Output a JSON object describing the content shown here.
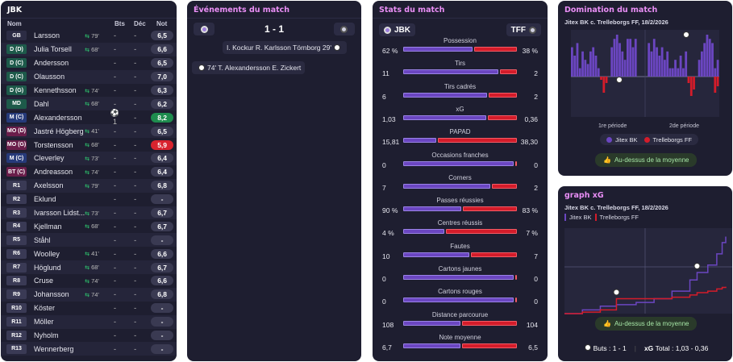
{
  "roster": {
    "title": "JBK",
    "headers": {
      "name": "Nom",
      "goals": "Bts",
      "dec": "Déc",
      "rating": "Not"
    },
    "players": [
      {
        "pos": "GB",
        "cls": "gk",
        "name": "Larsson",
        "sub": "79'",
        "sub_dir": "out",
        "bts": "-",
        "dec": "-",
        "rating": "6,5",
        "rc": ""
      },
      {
        "pos": "D (D)",
        "cls": "d",
        "name": "Julia Torsell",
        "sub": "68'",
        "sub_dir": "out",
        "bts": "-",
        "dec": "-",
        "rating": "6,6",
        "rc": ""
      },
      {
        "pos": "D (C)",
        "cls": "d",
        "name": "Andersson",
        "sub": "",
        "sub_dir": "",
        "bts": "-",
        "dec": "-",
        "rating": "6,5",
        "rc": ""
      },
      {
        "pos": "D (C)",
        "cls": "d",
        "name": "Olausson",
        "sub": "",
        "sub_dir": "",
        "bts": "-",
        "dec": "-",
        "rating": "7,0",
        "rc": ""
      },
      {
        "pos": "D (G)",
        "cls": "d",
        "name": "Kennethsson",
        "sub": "74'",
        "sub_dir": "out",
        "bts": "-",
        "dec": "-",
        "rating": "6,3",
        "rc": ""
      },
      {
        "pos": "MD",
        "cls": "md",
        "name": "Dahl",
        "sub": "68'",
        "sub_dir": "out",
        "bts": "-",
        "dec": "-",
        "rating": "6,2",
        "rc": ""
      },
      {
        "pos": "M (C)",
        "cls": "m",
        "name": "Alexandersson",
        "sub": "",
        "sub_dir": "",
        "bts": "⚽1",
        "dec": "-",
        "rating": "8,2",
        "rc": "best"
      },
      {
        "pos": "MO (D)",
        "cls": "mo",
        "name": "Jastré Högberg",
        "sub": "41'",
        "sub_dir": "out",
        "bts": "-",
        "dec": "-",
        "rating": "6,5",
        "rc": ""
      },
      {
        "pos": "MO (G)",
        "cls": "mo",
        "name": "Torstensson",
        "sub": "68'",
        "sub_dir": "out",
        "bts": "-",
        "dec": "-",
        "rating": "5,9",
        "rc": "worst"
      },
      {
        "pos": "M (C)",
        "cls": "m",
        "name": "Cleverley",
        "sub": "73'",
        "sub_dir": "out",
        "bts": "-",
        "dec": "-",
        "rating": "6,4",
        "rc": ""
      },
      {
        "pos": "BT (C)",
        "cls": "bt",
        "name": "Andreasson",
        "sub": "74'",
        "sub_dir": "out",
        "bts": "-",
        "dec": "-",
        "rating": "6,4",
        "rc": ""
      },
      {
        "pos": "R1",
        "cls": "sub",
        "name": "Axelsson",
        "sub": "79'",
        "sub_dir": "in",
        "bts": "-",
        "dec": "-",
        "rating": "6,8",
        "rc": ""
      },
      {
        "pos": "R2",
        "cls": "sub",
        "name": "Eklund",
        "sub": "",
        "sub_dir": "",
        "bts": "-",
        "dec": "-",
        "rating": "-",
        "rc": ""
      },
      {
        "pos": "R3",
        "cls": "sub",
        "name": "Ivarsson Lidst...",
        "sub": "73'",
        "sub_dir": "in",
        "bts": "-",
        "dec": "-",
        "rating": "6,7",
        "rc": ""
      },
      {
        "pos": "R4",
        "cls": "sub",
        "name": "Kjellman",
        "sub": "68'",
        "sub_dir": "in",
        "bts": "-",
        "dec": "-",
        "rating": "6,7",
        "rc": ""
      },
      {
        "pos": "R5",
        "cls": "sub",
        "name": "Ståhl",
        "sub": "",
        "sub_dir": "",
        "bts": "-",
        "dec": "-",
        "rating": "-",
        "rc": ""
      },
      {
        "pos": "R6",
        "cls": "sub",
        "name": "Woolley",
        "sub": "41'",
        "sub_dir": "in",
        "bts": "-",
        "dec": "-",
        "rating": "6,6",
        "rc": ""
      },
      {
        "pos": "R7",
        "cls": "sub",
        "name": "Höglund",
        "sub": "68'",
        "sub_dir": "in",
        "bts": "-",
        "dec": "-",
        "rating": "6,7",
        "rc": ""
      },
      {
        "pos": "R8",
        "cls": "sub",
        "name": "Cruse",
        "sub": "74'",
        "sub_dir": "in",
        "bts": "-",
        "dec": "-",
        "rating": "6,6",
        "rc": ""
      },
      {
        "pos": "R9",
        "cls": "sub",
        "name": "Johansson",
        "sub": "74'",
        "sub_dir": "in",
        "bts": "-",
        "dec": "-",
        "rating": "6,8",
        "rc": ""
      },
      {
        "pos": "R10",
        "cls": "sub",
        "name": "Köster",
        "sub": "",
        "sub_dir": "",
        "bts": "-",
        "dec": "-",
        "rating": "-",
        "rc": ""
      },
      {
        "pos": "R11",
        "cls": "sub",
        "name": "Möller",
        "sub": "",
        "sub_dir": "",
        "bts": "-",
        "dec": "-",
        "rating": "-",
        "rc": ""
      },
      {
        "pos": "R12",
        "cls": "sub",
        "name": "Nyholm",
        "sub": "",
        "sub_dir": "",
        "bts": "-",
        "dec": "-",
        "rating": "-",
        "rc": ""
      },
      {
        "pos": "R13",
        "cls": "sub",
        "name": "Wennerberg",
        "sub": "",
        "sub_dir": "",
        "bts": "-",
        "dec": "-",
        "rating": "-",
        "rc": ""
      }
    ]
  },
  "events": {
    "title": "Événements du match",
    "score": "1 - 1",
    "items": [
      {
        "text": "I. Kockur  R. Karlsson Törnborg 29'",
        "side": "away"
      },
      {
        "text": "74'  T. Alexandersson  E. Zickert",
        "side": "home"
      }
    ]
  },
  "stats": {
    "title": "Stats du match",
    "home_team": "JBK",
    "away_team": "TFF",
    "items": [
      {
        "label": "Possession",
        "home": "62 %",
        "away": "38 %",
        "hv": 62,
        "av": 38
      },
      {
        "label": "Tirs",
        "home": "11",
        "away": "2",
        "hv": 11,
        "av": 2
      },
      {
        "label": "Tirs cadrés",
        "home": "6",
        "away": "2",
        "hv": 6,
        "av": 2
      },
      {
        "label": "xG",
        "home": "1,03",
        "away": "0,36",
        "hv": 1.03,
        "av": 0.36
      },
      {
        "label": "PAPAD",
        "home": "15,81",
        "away": "38,30",
        "hv": 15.81,
        "av": 38.3
      },
      {
        "label": "Occasions franches",
        "home": "0",
        "away": "0",
        "hv": 0,
        "av": 0
      },
      {
        "label": "Corners",
        "home": "7",
        "away": "2",
        "hv": 7,
        "av": 2
      },
      {
        "label": "Passes réussies",
        "home": "90 %",
        "away": "83 %",
        "hv": 90,
        "av": 83
      },
      {
        "label": "Centres réussis",
        "home": "4 %",
        "away": "7 %",
        "hv": 4,
        "av": 7
      },
      {
        "label": "Fautes",
        "home": "10",
        "away": "7",
        "hv": 10,
        "av": 7
      },
      {
        "label": "Cartons jaunes",
        "home": "0",
        "away": "0",
        "hv": 0,
        "av": 0
      },
      {
        "label": "Cartons rouges",
        "home": "0",
        "away": "0",
        "hv": 0,
        "av": 0
      },
      {
        "label": "Distance parcourue",
        "home": "108",
        "away": "104",
        "hv": 108,
        "av": 104
      },
      {
        "label": "Note moyenne",
        "home": "6,7",
        "away": "6,5",
        "hv": 6.7,
        "av": 6.5
      }
    ]
  },
  "domination": {
    "title": "Domination du match",
    "subtitle": "Jitex BK c. Trelleborgs FF, 18/2/2026",
    "period1": "1re période",
    "period2": "2de période",
    "legend_home": "Jitex BK",
    "legend_away": "Trelleborgs FF",
    "button": "Au-dessus de la moyenne"
  },
  "xg_chart": {
    "title": "graph xG",
    "subtitle": "Jitex BK c. Trelleborgs FF, 18/2/2026",
    "legend_home": "Jitex BK",
    "legend_away": "Trelleborgs FF",
    "button": "Au-dessus de la moyenne",
    "goals_label": "Buts : 1 - 1",
    "xg_label": "xG",
    "xg_total": "Total : 1,03 - 0,36"
  },
  "colors": {
    "home": "#6b46c1",
    "away": "#d41c2a",
    "panel": "#1e1e30",
    "title_accent": "#e98ef5"
  },
  "chart_data": [
    {
      "type": "bar",
      "title": "Domination du match",
      "series": [
        {
          "name": "Jitex BK",
          "values": [
            0.7,
            0.5,
            0.8,
            0.2,
            0.6,
            0.4,
            0.3,
            0.6,
            0.7,
            0.5,
            0.2,
            0,
            0,
            0,
            0,
            0.7,
            0.9,
            1.0,
            0.8,
            0.6,
            0.4,
            0.9,
            0.9,
            0.7,
            0.9,
            0,
            0,
            0,
            0,
            0.8,
            0.6,
            0.9,
            0.7,
            0.5,
            0.7,
            0.4,
            0.6,
            0.2,
            0.2,
            0.4,
            0.2,
            0.5,
            0.2,
            0.6,
            0,
            0,
            0,
            0,
            0.4,
            0.6,
            0.8,
            1.0,
            0.9,
            0.8,
            0.2,
            0.4
          ]
        },
        {
          "name": "Trelleborgs FF",
          "values": [
            0,
            0,
            0,
            0,
            0,
            0,
            0,
            0,
            0,
            0,
            0,
            0.1,
            0.5,
            0.2,
            0,
            0,
            0,
            0,
            0,
            0,
            0,
            0,
            0,
            0,
            0,
            0,
            0,
            0,
            0,
            0,
            0,
            0,
            0,
            0,
            0,
            0,
            0,
            0,
            0,
            0,
            0,
            0,
            0,
            0,
            -0.2,
            -0.6,
            -0.4,
            0,
            0,
            0,
            0,
            0,
            0,
            0,
            -0.5,
            -0.3
          ]
        }
      ]
    },
    {
      "type": "line",
      "title": "graph xG",
      "x": [
        0,
        10,
        20,
        29,
        40,
        50,
        60,
        70,
        74,
        80,
        85,
        88,
        90
      ],
      "series": [
        {
          "name": "Jitex BK",
          "values": [
            0,
            0.05,
            0.1,
            0.12,
            0.15,
            0.2,
            0.3,
            0.45,
            0.55,
            0.65,
            0.8,
            0.95,
            1.03
          ]
        },
        {
          "name": "Trelleborgs FF",
          "values": [
            0,
            0.02,
            0.05,
            0.2,
            0.2,
            0.2,
            0.22,
            0.25,
            0.28,
            0.3,
            0.33,
            0.35,
            0.36
          ]
        }
      ],
      "goals": [
        {
          "team": "Jitex BK",
          "minute": 74
        },
        {
          "team": "Trelleborgs FF",
          "minute": 29
        }
      ],
      "legend": "top-left"
    }
  ]
}
